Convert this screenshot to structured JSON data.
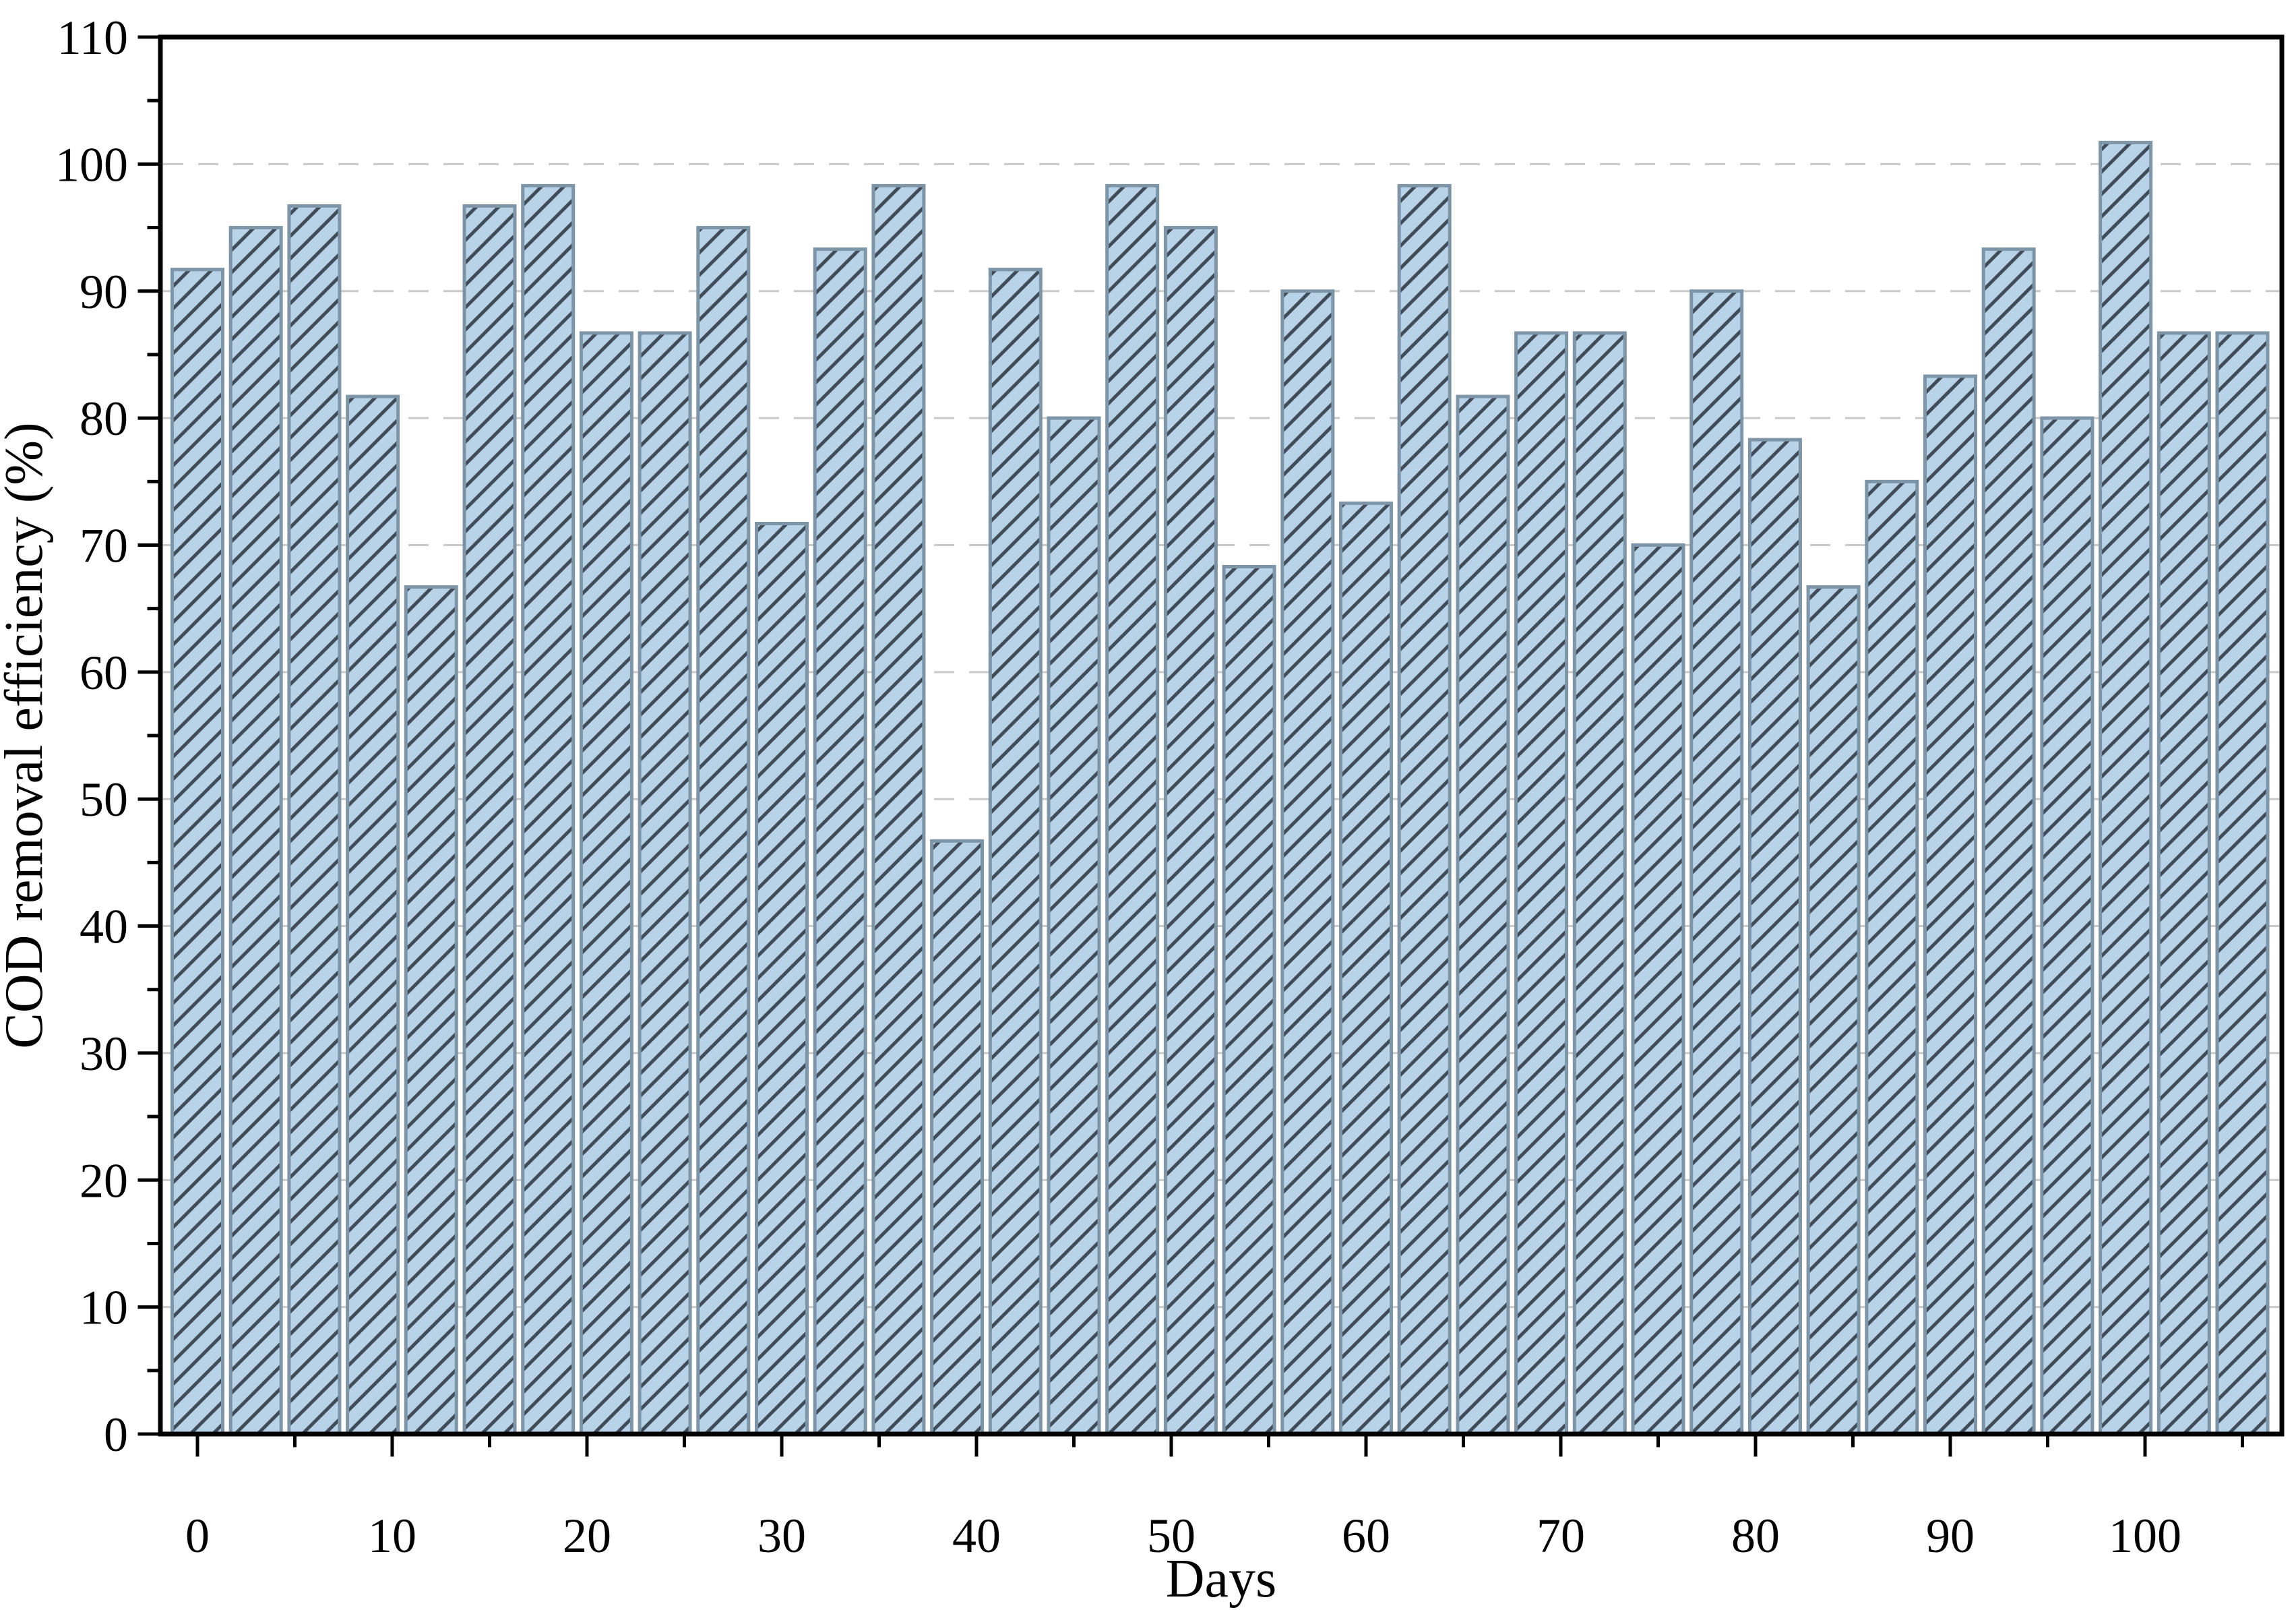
{
  "chart_data": {
    "type": "bar",
    "title": "",
    "xlabel": "Days",
    "ylabel": "COD removal efficiency (%)",
    "x": [
      0,
      3,
      6,
      9,
      12,
      15,
      18,
      21,
      24,
      27,
      30,
      33,
      36,
      39,
      42,
      45,
      48,
      51,
      54,
      57,
      60,
      63,
      66,
      69,
      72,
      75,
      78,
      81,
      84,
      87,
      90,
      93,
      96,
      99,
      102,
      105
    ],
    "values": [
      91.7,
      95.0,
      96.7,
      81.7,
      66.7,
      96.7,
      98.3,
      86.7,
      86.7,
      95.0,
      71.7,
      93.3,
      98.3,
      46.7,
      91.7,
      80.0,
      98.3,
      95.0,
      68.3,
      90.0,
      73.3,
      98.3,
      81.7,
      86.7,
      86.7,
      70.0,
      90.0,
      78.3,
      66.7,
      75.0,
      83.3,
      93.3,
      80.0,
      101.7,
      86.7,
      86.7
    ],
    "xlim": [
      -2,
      107
    ],
    "ylim": [
      0,
      110
    ],
    "x_major_ticks": [
      0,
      10,
      20,
      30,
      40,
      50,
      60,
      70,
      80,
      90,
      100
    ],
    "x_minor_ticks": [
      5,
      15,
      25,
      35,
      45,
      55,
      65,
      75,
      85,
      95,
      105
    ],
    "y_major_ticks": [
      0,
      10,
      20,
      30,
      40,
      50,
      60,
      70,
      80,
      90,
      100,
      110
    ],
    "y_minor_ticks": [
      5,
      15,
      25,
      35,
      45,
      55,
      65,
      75,
      85,
      95,
      105
    ],
    "gridlines": {
      "axis": "y",
      "values": [
        10,
        20,
        30,
        40,
        50,
        60,
        70,
        80,
        90,
        100
      ],
      "style": "dashed",
      "color": "#c9c9c9"
    },
    "legend": null,
    "bar_style": {
      "fill_color": "#b8d2e7",
      "edge_color": "#7e94a7",
      "hatch": "/",
      "hatch_color": "#3f4b58"
    },
    "frame_color": "#000000"
  }
}
